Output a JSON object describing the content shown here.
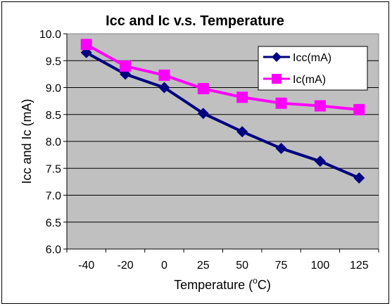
{
  "chart_data": {
    "type": "line",
    "title": "Icc and Ic v.s. Temperature",
    "xlabel": "Temperature (",
    "xlabel_sup": "o",
    "xlabel_tail": "C)",
    "ylabel": "Icc and Ic (mA)",
    "categories": [
      "-40",
      "-20",
      "0",
      "25",
      "50",
      "75",
      "100",
      "125"
    ],
    "ylim": [
      6.0,
      10.0
    ],
    "yticks": [
      "6.0",
      "6.5",
      "7.0",
      "7.5",
      "8.0",
      "8.5",
      "9.0",
      "9.5",
      "10.0"
    ],
    "grid": true,
    "legend_position": "top-right",
    "series": [
      {
        "name": "Icc(mA)",
        "color": "#000080",
        "marker": "diamond",
        "values": [
          9.65,
          9.25,
          9.0,
          8.52,
          8.18,
          7.87,
          7.63,
          7.32
        ]
      },
      {
        "name": "Ic(mA)",
        "color": "#FF00FF",
        "marker": "square",
        "values": [
          9.8,
          9.4,
          9.23,
          8.98,
          8.82,
          8.71,
          8.66,
          8.59
        ]
      }
    ]
  }
}
